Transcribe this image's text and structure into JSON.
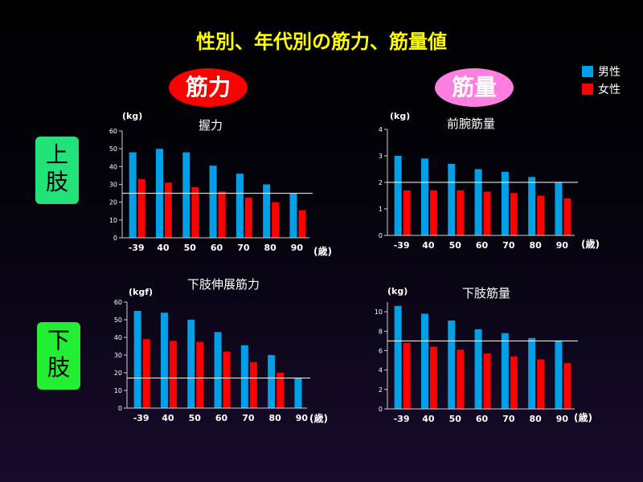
{
  "title": "性別、年代別の筋力、筋量値",
  "labels": {
    "strength": "筋力",
    "muscle_mass": "筋量",
    "upper_limb": "上肢",
    "lower_limb": "下肢"
  },
  "legend": [
    {
      "name": "男性",
      "color": "#00a0e9"
    },
    {
      "name": "女性",
      "color": "#ff0000"
    }
  ],
  "colors": {
    "male": "#00a0e9",
    "female": "#ff0000",
    "reference_line": "#ffffff",
    "title": "#ffff00"
  },
  "chart_data": [
    {
      "type": "bar",
      "title": "握力",
      "ylabel": "(kg)",
      "xlabel": "(歳)",
      "categories": [
        "-39",
        "40",
        "50",
        "60",
        "70",
        "80",
        "90"
      ],
      "ylim": [
        0,
        60
      ],
      "yticks": [
        0,
        10,
        20,
        30,
        40,
        50,
        60
      ],
      "series": [
        {
          "name": "男性",
          "values": [
            48,
            50,
            48,
            40.5,
            36,
            30,
            25
          ]
        },
        {
          "name": "女性",
          "values": [
            33,
            31,
            28.5,
            26,
            22.5,
            20,
            15.5
          ]
        }
      ],
      "reference_line": 25
    },
    {
      "type": "bar",
      "title": "前腕筋量",
      "ylabel": "(kg)",
      "xlabel": "(歳)",
      "categories": [
        "-39",
        "40",
        "50",
        "60",
        "70",
        "80",
        "90"
      ],
      "ylim": [
        0,
        4
      ],
      "yticks": [
        0,
        1,
        2,
        3,
        4
      ],
      "series": [
        {
          "name": "男性",
          "values": [
            3.0,
            2.9,
            2.7,
            2.5,
            2.4,
            2.2,
            2.0
          ]
        },
        {
          "name": "女性",
          "values": [
            1.7,
            1.7,
            1.7,
            1.65,
            1.6,
            1.5,
            1.4
          ]
        }
      ],
      "reference_line": 2.0
    },
    {
      "type": "bar",
      "title": "下肢伸展筋力",
      "ylabel": "(kgf)",
      "xlabel": "(歳)",
      "categories": [
        "-39",
        "40",
        "50",
        "60",
        "70",
        "80",
        "90"
      ],
      "ylim": [
        0,
        60
      ],
      "yticks": [
        0,
        10,
        20,
        30,
        40,
        50,
        60
      ],
      "series": [
        {
          "name": "男性",
          "values": [
            55,
            54,
            50,
            43,
            35.5,
            30,
            17
          ]
        },
        {
          "name": "女性",
          "values": [
            39,
            38,
            37.5,
            32,
            26,
            20,
            null
          ]
        }
      ],
      "reference_line": 17
    },
    {
      "type": "bar",
      "title": "下肢筋量",
      "ylabel": "(kg)",
      "xlabel": "(歳)",
      "categories": [
        "-39",
        "40",
        "50",
        "60",
        "70",
        "80",
        "90"
      ],
      "ylim": [
        0,
        11
      ],
      "yticks": [
        0,
        2,
        4,
        6,
        8,
        10
      ],
      "series": [
        {
          "name": "男性",
          "values": [
            10.6,
            9.8,
            9.1,
            8.2,
            7.8,
            7.3,
            7.0
          ]
        },
        {
          "name": "女性",
          "values": [
            6.8,
            6.4,
            6.1,
            5.7,
            5.4,
            5.1,
            4.7
          ]
        }
      ],
      "reference_line": 7.0
    }
  ]
}
